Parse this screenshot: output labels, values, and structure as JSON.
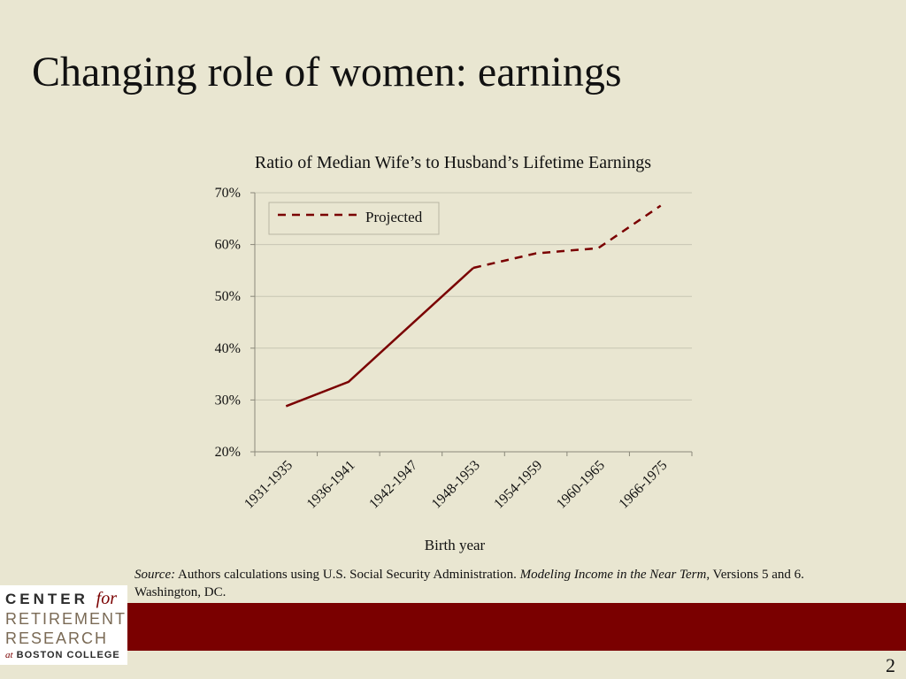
{
  "slide": {
    "title": "Changing role of women: earnings",
    "page_number": "2"
  },
  "source": {
    "label": "Source:",
    "text1": " Authors calculations using U.S. Social Security Administration. ",
    "italic_title": "Modeling Income in the Near Term",
    "text2": ", Versions 5 and 6. Washington, DC."
  },
  "logo": {
    "line1": "CENTER",
    "line1_for": "for",
    "line2": "RETIREMENT",
    "line3": "RESEARCH",
    "line4_at": "at",
    "line4": "BOSTON COLLEGE"
  },
  "colors": {
    "background": "#e9e6d1",
    "accent": "#7a0000"
  },
  "chart_data": {
    "type": "line",
    "title": "Ratio of Median Wife’s to Husband’s Lifetime Earnings",
    "xlabel": "Birth year",
    "ylabel": "",
    "categories": [
      "1931-1935",
      "1936-1941",
      "1942-1947",
      "1948-1953",
      "1954-1959",
      "1960-1965",
      "1966-1975"
    ],
    "ylim": [
      0.2,
      0.7
    ],
    "yticks": [
      0.2,
      0.3,
      0.4,
      0.5,
      0.6,
      0.7
    ],
    "ytick_labels": [
      "20%",
      "30%",
      "40%",
      "50%",
      "60%",
      "70%"
    ],
    "grid": true,
    "legend_position": "top-left",
    "series": [
      {
        "style": "solid",
        "color": "#7a0000",
        "values": [
          0.288,
          0.335,
          0.445,
          0.555,
          null,
          null,
          null
        ]
      },
      {
        "name": "Projected",
        "style": "dashed",
        "color": "#7a0000",
        "values": [
          null,
          null,
          null,
          0.555,
          0.583,
          0.593,
          0.675
        ]
      }
    ]
  }
}
